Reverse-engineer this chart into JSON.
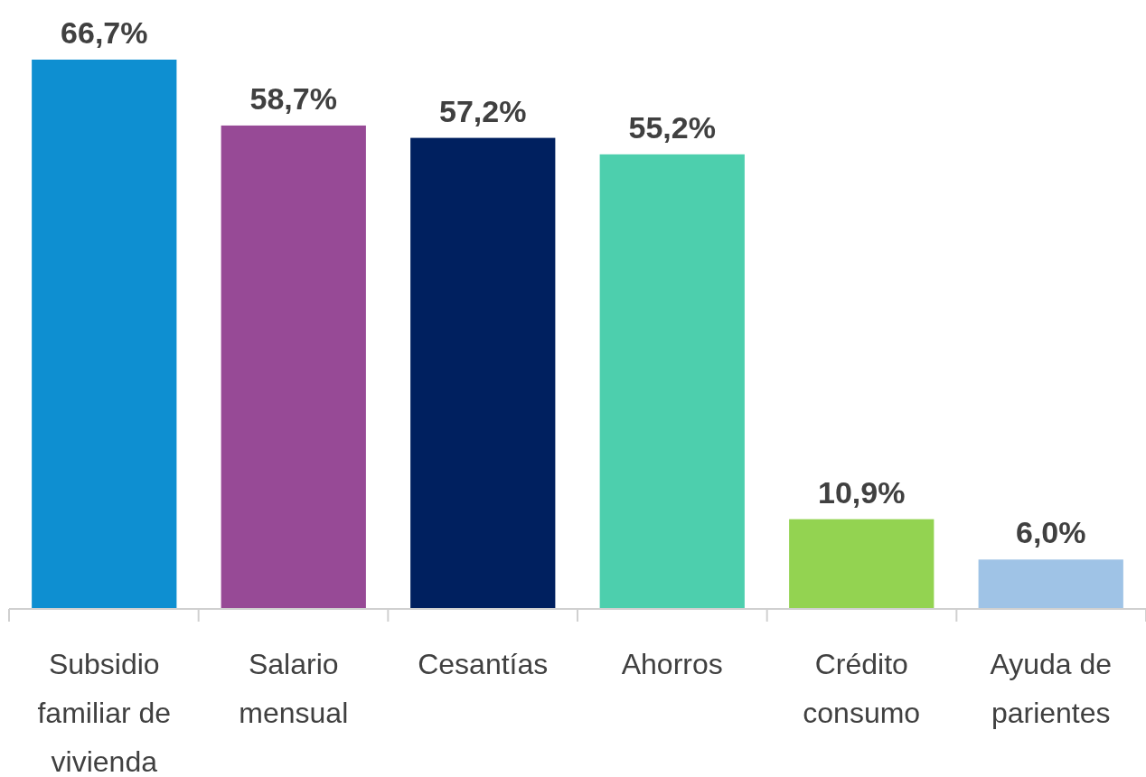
{
  "chart_data": {
    "type": "bar",
    "categories": [
      "Subsidio familiar de vivienda",
      "Salario mensual",
      "Cesantías",
      "Ahorros",
      "Crédito consumo",
      "Ayuda de parientes"
    ],
    "values": [
      66.7,
      58.7,
      57.2,
      55.2,
      10.9,
      6.0
    ],
    "colors": [
      "#0e8fd1",
      "#974a96",
      "#00205f",
      "#4dcfad",
      "#93d351",
      "#9fc3e6"
    ],
    "value_labels": [
      "66,7%",
      "58,7%",
      "57,2%",
      "55,2%",
      "10,9%",
      "6,0%"
    ],
    "data_labels": false
  }
}
